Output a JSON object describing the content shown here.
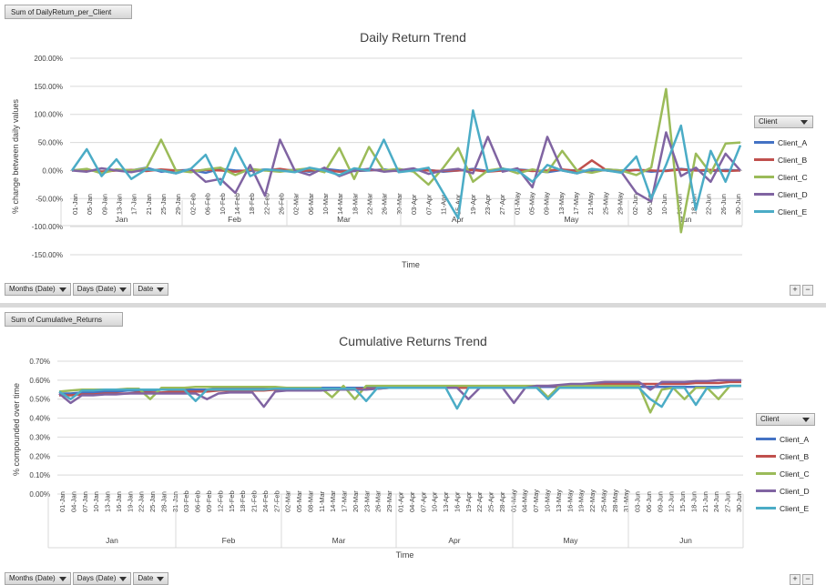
{
  "charts": [
    {
      "field_tag": "Sum of DailyReturn_per_Client",
      "chart_data": {
        "type": "line",
        "title": "Daily Return Trend",
        "xlabel": "Time",
        "ylabel": "% change between daily values",
        "yticks": [
          "200.00%",
          "150.00%",
          "100.00%",
          "50.00%",
          "0.00%",
          "-50.00%",
          "-100.00%",
          "-150.00%"
        ],
        "ylim": [
          -150,
          200
        ],
        "xtick_labels": [
          "01-Jan",
          "05-Jan",
          "09-Jan",
          "13-Jan",
          "17-Jan",
          "21-Jan",
          "25-Jan",
          "29-Jan",
          "02-Feb",
          "06-Feb",
          "10-Feb",
          "14-Feb",
          "18-Feb",
          "22-Feb",
          "26-Feb",
          "02-Mar",
          "06-Mar",
          "10-Mar",
          "14-Mar",
          "18-Mar",
          "22-Mar",
          "26-Mar",
          "30-Mar",
          "03-Apr",
          "07-Apr",
          "11-Apr",
          "15-Apr",
          "19-Apr",
          "23-Apr",
          "27-Apr",
          "01-May",
          "05-May",
          "09-May",
          "13-May",
          "17-May",
          "21-May",
          "25-May",
          "29-May",
          "02-Jun",
          "06-Jun",
          "10-Jun",
          "14-Jun",
          "18-Jun",
          "22-Jun",
          "26-Jun",
          "30-Jun"
        ],
        "months": [
          "Jan",
          "Feb",
          "Mar",
          "Apr",
          "May",
          "Jun"
        ],
        "grid": true,
        "legend_position": "right",
        "series": [
          {
            "name": "Client_A",
            "color": "#4472c4",
            "values": [
              0,
              2,
              -3,
              1,
              0,
              5,
              -2,
              0,
              1,
              -4,
              3,
              0,
              -1,
              2,
              0,
              1,
              -2,
              3,
              0,
              -1,
              0,
              2,
              -1,
              0,
              1,
              -2,
              0,
              3,
              -1,
              0,
              2,
              0,
              -3,
              1,
              0,
              -1,
              2,
              0,
              1,
              -2,
              0,
              3,
              0,
              -1,
              1,
              0
            ]
          },
          {
            "name": "Client_B",
            "color": "#c0504d",
            "values": [
              0,
              1,
              -2,
              0,
              1,
              -1,
              2,
              0,
              -1,
              1,
              0,
              -2,
              1,
              0,
              3,
              -1,
              0,
              1,
              -2,
              0,
              1,
              0,
              -1,
              2,
              0,
              -1,
              0,
              1,
              -2,
              0,
              1,
              -1,
              0,
              2,
              -1,
              18,
              0,
              -2,
              1,
              0,
              -1,
              2,
              0,
              1,
              -1,
              0
            ]
          },
          {
            "name": "Client_C",
            "color": "#9bbb59",
            "values": [
              0,
              3,
              -5,
              2,
              0,
              4,
              55,
              0,
              -3,
              2,
              5,
              -8,
              3,
              0,
              -2,
              1,
              4,
              -3,
              40,
              -15,
              42,
              0,
              3,
              -2,
              -25,
              5,
              40,
              -20,
              0,
              4,
              -5,
              2,
              -3,
              35,
              0,
              -4,
              2,
              0,
              -8,
              5,
              145,
              -110,
              30,
              -5,
              48,
              50
            ]
          },
          {
            "name": "Client_D",
            "color": "#8064a2",
            "values": [
              0,
              -2,
              4,
              0,
              -3,
              2,
              0,
              -5,
              3,
              -20,
              -15,
              -40,
              10,
              -45,
              55,
              0,
              -8,
              5,
              -10,
              0,
              3,
              -2,
              0,
              4,
              -6,
              0,
              3,
              -5,
              60,
              -2,
              4,
              -30,
              60,
              0,
              -5,
              2,
              0,
              -3,
              -40,
              -55,
              68,
              -10,
              5,
              -20,
              30,
              0
            ]
          },
          {
            "name": "Client_E",
            "color": "#4bacc6",
            "values": [
              0,
              38,
              -10,
              20,
              -15,
              2,
              0,
              -5,
              3,
              28,
              -25,
              40,
              -10,
              2,
              0,
              -3,
              5,
              0,
              -8,
              4,
              0,
              55,
              -3,
              0,
              5,
              -40,
              -85,
              107,
              -2,
              3,
              0,
              -20,
              10,
              0,
              -5,
              3,
              0,
              -4,
              25,
              -50,
              10,
              80,
              -70,
              35,
              -20,
              45
            ]
          }
        ]
      },
      "legend_title": "Client",
      "filters": [
        "Months (Date)",
        "Days (Date)",
        "Date"
      ]
    },
    {
      "field_tag": "Sum of Cumulative_Returns",
      "chart_data": {
        "type": "line",
        "title": "Cumulative Returns Trend",
        "xlabel": "Time",
        "ylabel": "% compounded over time",
        "yticks": [
          "0.70%",
          "0.60%",
          "0.50%",
          "0.40%",
          "0.30%",
          "0.20%",
          "0.10%",
          "0.00%"
        ],
        "ylim": [
          0,
          0.7
        ],
        "xtick_labels": [
          "01-Jan",
          "04-Jan",
          "07-Jan",
          "10-Jan",
          "13-Jan",
          "16-Jan",
          "19-Jan",
          "22-Jan",
          "25-Jan",
          "28-Jan",
          "31-Jan",
          "03-Feb",
          "06-Feb",
          "09-Feb",
          "12-Feb",
          "15-Feb",
          "18-Feb",
          "21-Feb",
          "24-Feb",
          "27-Feb",
          "02-Mar",
          "05-Mar",
          "08-Mar",
          "11-Mar",
          "14-Mar",
          "17-Mar",
          "20-Mar",
          "23-Mar",
          "26-Mar",
          "29-Mar",
          "01-Apr",
          "04-Apr",
          "07-Apr",
          "10-Apr",
          "13-Apr",
          "16-Apr",
          "19-Apr",
          "22-Apr",
          "25-Apr",
          "28-Apr",
          "01-May",
          "04-May",
          "07-May",
          "10-May",
          "13-May",
          "16-May",
          "19-May",
          "22-May",
          "25-May",
          "28-May",
          "31-May",
          "03-Jun",
          "06-Jun",
          "09-Jun",
          "12-Jun",
          "15-Jun",
          "18-Jun",
          "21-Jun",
          "24-Jun",
          "27-Jun",
          "30-Jun"
        ],
        "months": [
          "Jan",
          "Feb",
          "Mar",
          "Apr",
          "May",
          "Jun"
        ],
        "grid": true,
        "legend_position": "right",
        "series": [
          {
            "name": "Client_A",
            "color": "#4472c4",
            "values": [
              0.53,
              0.53,
              0.535,
              0.535,
              0.54,
              0.54,
              0.545,
              0.545,
              0.545,
              0.55,
              0.55,
              0.55,
              0.55,
              0.55,
              0.555,
              0.555,
              0.555,
              0.555,
              0.555,
              0.56,
              0.56,
              0.56,
              0.56,
              0.56,
              0.56,
              0.56,
              0.56,
              0.56,
              0.56,
              0.565,
              0.565,
              0.565,
              0.565,
              0.565,
              0.565,
              0.565,
              0.565,
              0.565,
              0.565,
              0.565,
              0.565,
              0.565,
              0.565,
              0.565,
              0.565,
              0.565,
              0.565,
              0.565,
              0.565,
              0.565,
              0.565,
              0.565,
              0.565,
              0.565,
              0.565,
              0.565,
              0.565,
              0.565,
              0.565,
              0.57,
              0.57
            ]
          },
          {
            "name": "Client_B",
            "color": "#c0504d",
            "values": [
              0.52,
              0.52,
              0.525,
              0.525,
              0.53,
              0.53,
              0.53,
              0.535,
              0.535,
              0.535,
              0.54,
              0.54,
              0.54,
              0.54,
              0.545,
              0.545,
              0.545,
              0.545,
              0.545,
              0.55,
              0.55,
              0.55,
              0.55,
              0.55,
              0.55,
              0.555,
              0.555,
              0.555,
              0.555,
              0.56,
              0.56,
              0.56,
              0.56,
              0.56,
              0.56,
              0.56,
              0.56,
              0.56,
              0.56,
              0.565,
              0.565,
              0.565,
              0.57,
              0.57,
              0.57,
              0.575,
              0.575,
              0.58,
              0.58,
              0.58,
              0.58,
              0.58,
              0.58,
              0.58,
              0.58,
              0.58,
              0.585,
              0.585,
              0.585,
              0.59,
              0.59
            ]
          },
          {
            "name": "Client_C",
            "color": "#9bbb59",
            "values": [
              0.54,
              0.545,
              0.55,
              0.55,
              0.55,
              0.55,
              0.555,
              0.555,
              0.5,
              0.56,
              0.56,
              0.56,
              0.565,
              0.565,
              0.565,
              0.565,
              0.565,
              0.565,
              0.565,
              0.565,
              0.56,
              0.56,
              0.56,
              0.56,
              0.51,
              0.57,
              0.5,
              0.57,
              0.57,
              0.57,
              0.57,
              0.57,
              0.57,
              0.57,
              0.57,
              0.57,
              0.57,
              0.57,
              0.57,
              0.57,
              0.57,
              0.57,
              0.57,
              0.51,
              0.57,
              0.57,
              0.57,
              0.57,
              0.57,
              0.57,
              0.57,
              0.57,
              0.43,
              0.55,
              0.56,
              0.5,
              0.56,
              0.56,
              0.5,
              0.57,
              0.57
            ]
          },
          {
            "name": "Client_D",
            "color": "#8064a2",
            "values": [
              0.53,
              0.48,
              0.52,
              0.52,
              0.525,
              0.525,
              0.53,
              0.53,
              0.53,
              0.53,
              0.53,
              0.53,
              0.53,
              0.5,
              0.53,
              0.535,
              0.535,
              0.535,
              0.46,
              0.54,
              0.545,
              0.545,
              0.545,
              0.545,
              0.55,
              0.55,
              0.55,
              0.55,
              0.555,
              0.56,
              0.56,
              0.56,
              0.56,
              0.56,
              0.56,
              0.56,
              0.5,
              0.56,
              0.56,
              0.56,
              0.48,
              0.56,
              0.57,
              0.57,
              0.575,
              0.58,
              0.58,
              0.585,
              0.59,
              0.59,
              0.59,
              0.59,
              0.55,
              0.59,
              0.59,
              0.59,
              0.595,
              0.595,
              0.6,
              0.6,
              0.6
            ]
          },
          {
            "name": "Client_E",
            "color": "#4bacc6",
            "values": [
              0.54,
              0.5,
              0.545,
              0.545,
              0.55,
              0.55,
              0.55,
              0.55,
              0.55,
              0.55,
              0.55,
              0.55,
              0.49,
              0.55,
              0.55,
              0.55,
              0.55,
              0.55,
              0.55,
              0.555,
              0.555,
              0.555,
              0.555,
              0.555,
              0.555,
              0.555,
              0.555,
              0.49,
              0.56,
              0.56,
              0.56,
              0.56,
              0.56,
              0.56,
              0.56,
              0.45,
              0.56,
              0.56,
              0.56,
              0.56,
              0.56,
              0.56,
              0.56,
              0.5,
              0.56,
              0.56,
              0.56,
              0.56,
              0.56,
              0.56,
              0.56,
              0.56,
              0.5,
              0.46,
              0.56,
              0.56,
              0.47,
              0.56,
              0.56,
              0.57,
              0.57
            ]
          }
        ]
      },
      "legend_title": "Client",
      "filters": [
        "Months (Date)",
        "Days (Date)",
        "Date"
      ]
    }
  ],
  "zoom": [
    "+",
    "−"
  ]
}
